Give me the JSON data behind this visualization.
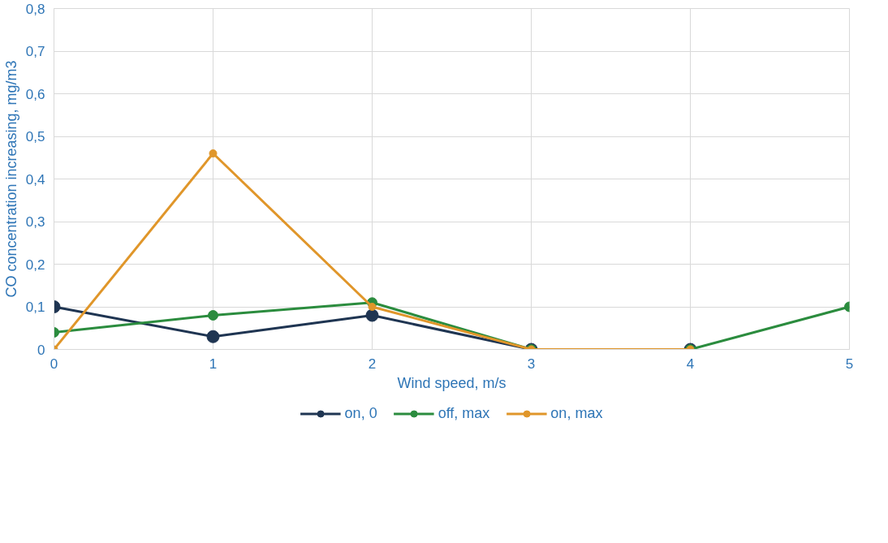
{
  "chart_data": {
    "type": "line",
    "xlabel": "Wind speed, m/s",
    "ylabel": "CO concentration increasing, mg/m3",
    "x": [
      0,
      1,
      2,
      3,
      4,
      5
    ],
    "series": [
      {
        "name": "on, 0",
        "color": "#1f3552",
        "values": [
          0.1,
          0.03,
          0.08,
          0,
          0,
          null
        ]
      },
      {
        "name": "off, max",
        "color": "#2b8c3e",
        "values": [
          0.04,
          0.08,
          0.11,
          0,
          0,
          0.1
        ]
      },
      {
        "name": "on, max",
        "color": "#e0962a",
        "values": [
          0,
          0.46,
          0.1,
          0,
          0,
          null
        ]
      }
    ],
    "xlim": [
      0,
      5
    ],
    "xticks": [
      0,
      1,
      2,
      3,
      4,
      5
    ],
    "ylim": [
      0,
      0.8
    ],
    "yticks": [
      0,
      {
        "value": 0.1,
        "label": "0,1"
      },
      {
        "value": 0.2,
        "label": "0,2"
      },
      {
        "value": 0.3,
        "label": "0,3"
      },
      {
        "value": 0.4,
        "label": "0,4"
      },
      {
        "value": 0.5,
        "label": "0,5"
      },
      {
        "value": 0.6,
        "label": "0,6"
      },
      {
        "value": 0.7,
        "label": "0,7"
      },
      {
        "value": 0.8,
        "label": "0,8"
      }
    ],
    "grid": true,
    "legend": "bottom",
    "marker": "circle",
    "line_style": "solid"
  }
}
